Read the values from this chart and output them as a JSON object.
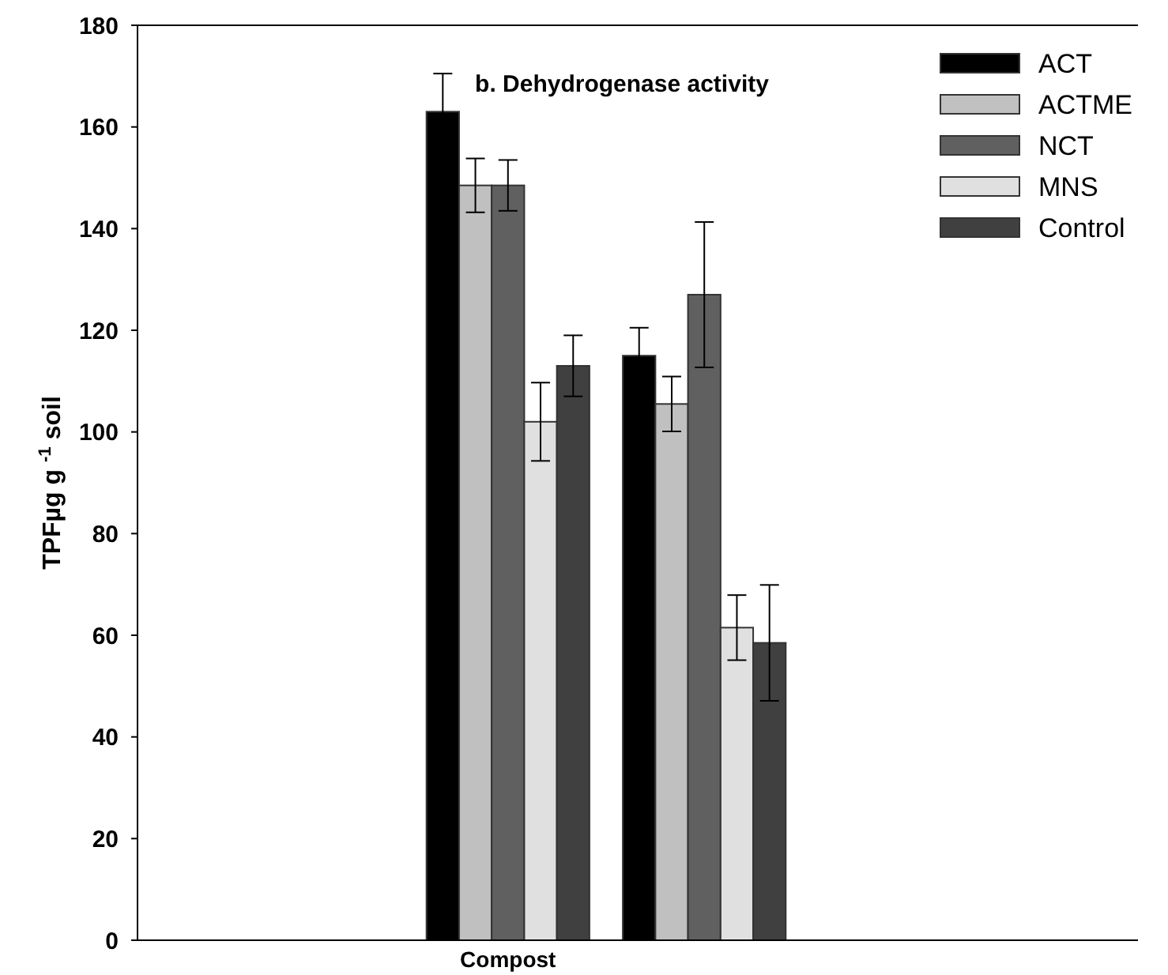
{
  "chart_data": {
    "type": "bar",
    "title": "b. Dehydrogenase activity",
    "ylabel": "TPFµg g $^{-1}$ soil",
    "categories": [
      "Compost",
      null
    ],
    "series": [
      {
        "name": "ACT",
        "color": "#000000",
        "values": [
          163,
          115
        ],
        "errors": [
          7.5,
          5.5
        ]
      },
      {
        "name": "ACTME",
        "color": "#c0c0c0",
        "values": [
          148.5,
          105.5
        ],
        "errors": [
          5.3,
          5.4
        ]
      },
      {
        "name": "NCT",
        "color": "#606060",
        "values": [
          148.5,
          127
        ],
        "errors": [
          5,
          14.3
        ]
      },
      {
        "name": "MNS",
        "color": "#e0e0e0",
        "values": [
          102,
          61.5
        ],
        "errors": [
          7.7,
          6.4
        ]
      },
      {
        "name": "Control",
        "color": "#404040",
        "values": [
          113,
          58.5
        ],
        "errors": [
          6,
          11.4
        ]
      }
    ],
    "ylim": [
      0,
      180
    ],
    "yticks": [
      0,
      20,
      40,
      60,
      80,
      100,
      120,
      140,
      160,
      180
    ],
    "legend": "top right",
    "grid": false
  }
}
